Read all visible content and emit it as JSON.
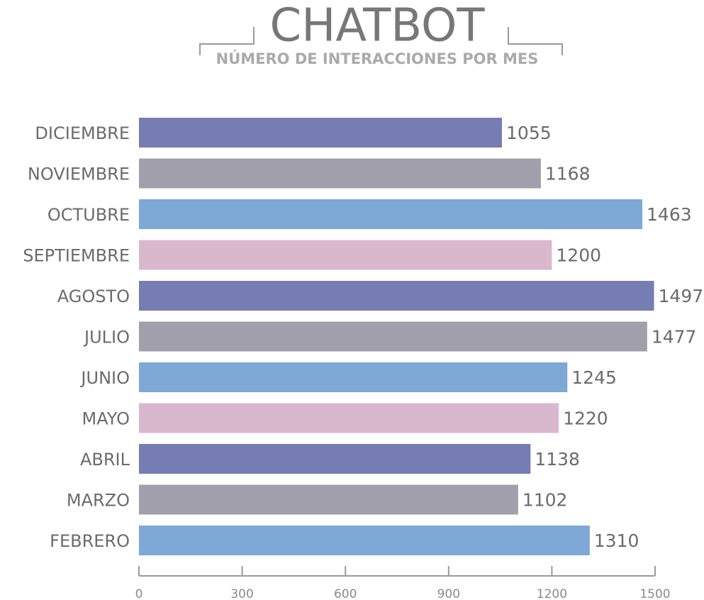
{
  "chart_data": {
    "type": "bar",
    "orientation": "horizontal",
    "title": "CHATBOT",
    "subtitle": "NÚMERO DE INTERACCIONES POR MES",
    "categories": [
      "DICIEMBRE",
      "NOVIEMBRE",
      "OCTUBRE",
      "SEPTIEMBRE",
      "AGOSTO",
      "JULIO",
      "JUNIO",
      "MAYO",
      "ABRIL",
      "MARZO",
      "FEBRERO"
    ],
    "values": [
      1055,
      1168,
      1463,
      1200,
      1497,
      1477,
      1245,
      1220,
      1138,
      1102,
      1310
    ],
    "colors": [
      "#767db3",
      "#a19fab",
      "#7ea8d5",
      "#d9b8cd",
      "#767db3",
      "#a19fab",
      "#7ea8d5",
      "#d9b8cd",
      "#767db3",
      "#a19fab",
      "#7ea8d5"
    ],
    "xlim": [
      0,
      1500
    ],
    "xticks": [
      0,
      300,
      600,
      900,
      1200,
      1500
    ],
    "grid": false
  }
}
